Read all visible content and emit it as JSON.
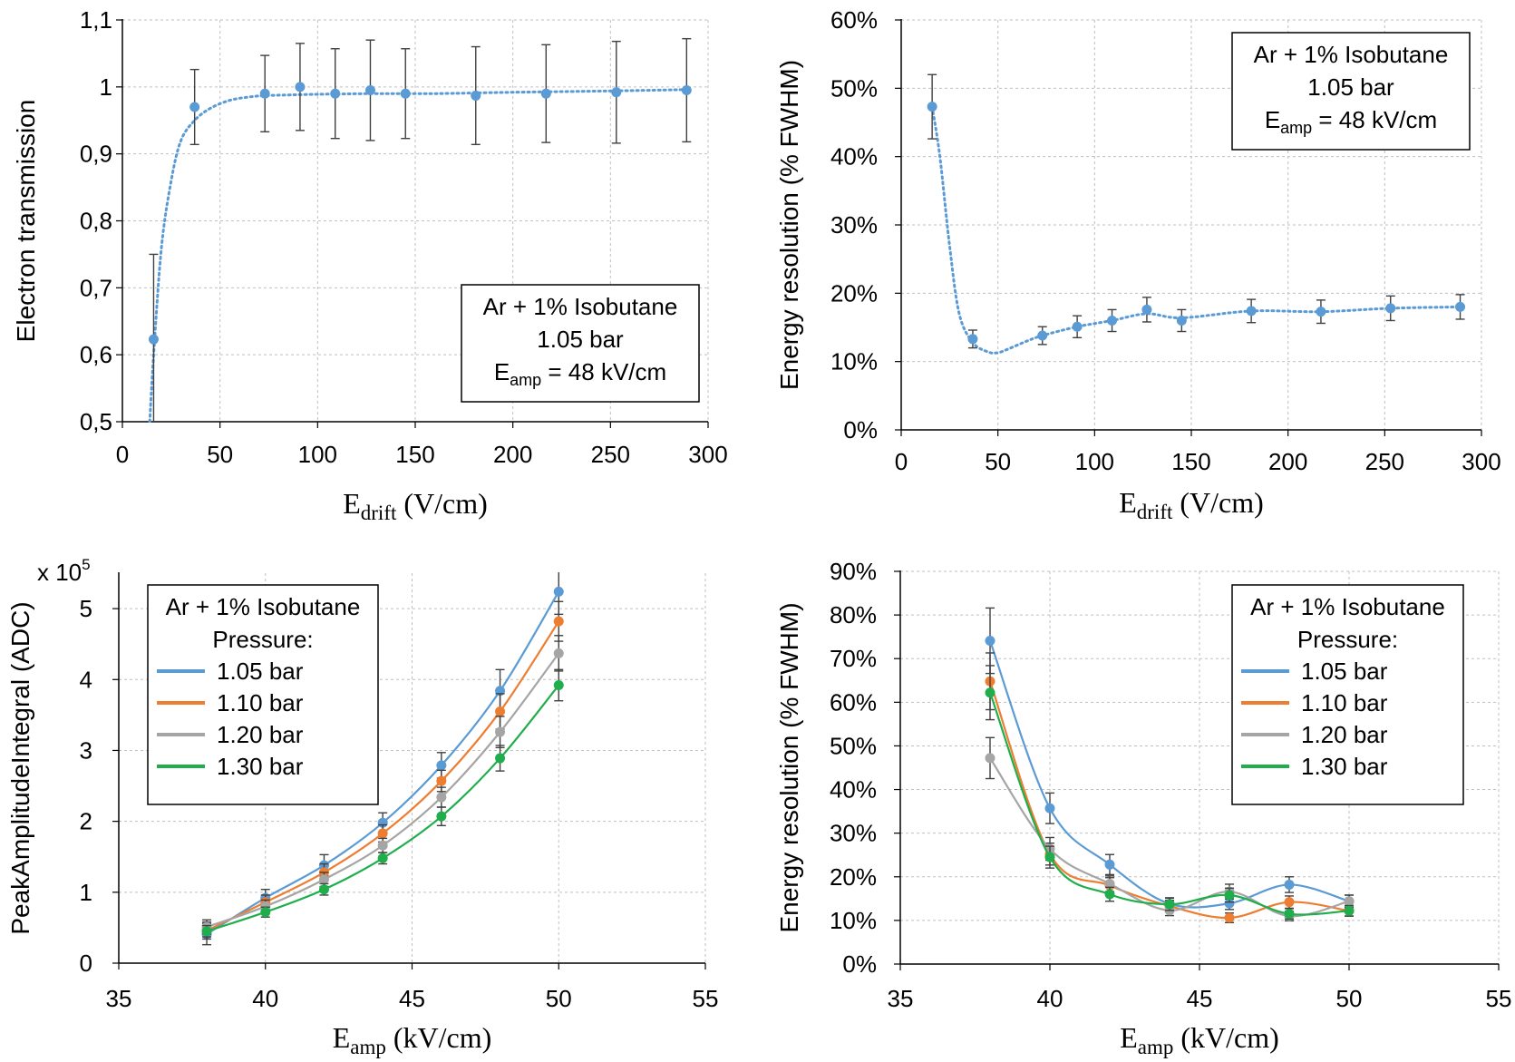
{
  "chart_data": [
    {
      "id": "a",
      "type": "scatter",
      "title": "",
      "xlabel": "E",
      "xlabel_sub": "drift",
      "xlabel_unit": " (V/cm)",
      "ylabel": "Electron transmission",
      "xlim": [
        0,
        300
      ],
      "ylim": [
        0.5,
        1.1
      ],
      "xticks": [
        0,
        50,
        100,
        150,
        200,
        250,
        300
      ],
      "xtick_labels": [
        "0",
        "50",
        "100",
        "150",
        "200",
        "250",
        "300"
      ],
      "yticks": [
        0.5,
        0.6,
        0.7,
        0.8,
        0.9,
        1.0,
        1.1
      ],
      "ytick_labels": [
        "0,5",
        "0,6",
        "0,7",
        "0,8",
        "0,9",
        "1",
        "1,1"
      ],
      "grid": true,
      "legend": {
        "placement": "bottom-right",
        "lines": [
          "Ar + 1% Isobutane",
          "1.05 bar"
        ],
        "eamp_label": "E",
        "eamp_sub": "amp",
        "eamp_rest": " = 48 kV/cm"
      },
      "series": [
        {
          "name": "1.05 bar",
          "color": "#5b9bd5",
          "fit": "dotted",
          "x": [
            16,
            37,
            73,
            91,
            109,
            127,
            145,
            181,
            217,
            253,
            289
          ],
          "y": [
            0.623,
            0.97,
            0.99,
            1.0,
            0.99,
            0.995,
            0.99,
            0.987,
            0.99,
            0.992,
            0.995
          ],
          "err": [
            0.127,
            0.056,
            0.057,
            0.065,
            0.067,
            0.075,
            0.067,
            0.073,
            0.073,
            0.076,
            0.077
          ],
          "curve_x": [
            14,
            16,
            20,
            25,
            30,
            37,
            45,
            55,
            65,
            73,
            85,
            100,
            130,
            160,
            200,
            250,
            289
          ],
          "curve_y": [
            0.5,
            0.6,
            0.76,
            0.86,
            0.92,
            0.95,
            0.968,
            0.98,
            0.985,
            0.987,
            0.988,
            0.989,
            0.99,
            0.99,
            0.992,
            0.994,
            0.996
          ]
        }
      ]
    },
    {
      "id": "b",
      "type": "scatter",
      "title": "",
      "xlabel": "E",
      "xlabel_sub": "drift",
      "xlabel_unit": " (V/cm)",
      "ylabel": "Energy resolution (% FWHM)",
      "xlim": [
        0,
        300
      ],
      "ylim": [
        0,
        60
      ],
      "xticks": [
        0,
        50,
        100,
        150,
        200,
        250,
        300
      ],
      "xtick_labels": [
        "0",
        "50",
        "100",
        "150",
        "200",
        "250",
        "300"
      ],
      "yticks": [
        0,
        10,
        20,
        30,
        40,
        50,
        60
      ],
      "ytick_labels": [
        "0%",
        "10%",
        "20%",
        "30%",
        "40%",
        "50%",
        "60%"
      ],
      "grid": true,
      "legend": {
        "placement": "top-right",
        "lines": [
          "Ar + 1% Isobutane",
          "1.05 bar"
        ],
        "eamp_label": "E",
        "eamp_sub": "amp",
        "eamp_rest": " = 48 kV/cm"
      },
      "series": [
        {
          "name": "1.05 bar",
          "color": "#5b9bd5",
          "fit": "dotted",
          "x": [
            16,
            37,
            73,
            91,
            109,
            127,
            145,
            181,
            217,
            253,
            289
          ],
          "y": [
            47.3,
            13.3,
            13.8,
            15.1,
            16.0,
            17.6,
            16.0,
            17.4,
            17.3,
            17.8,
            18.0
          ],
          "err": [
            4.7,
            1.3,
            1.3,
            1.6,
            1.6,
            1.8,
            1.6,
            1.7,
            1.7,
            1.8,
            1.8
          ],
          "curve_x": [
            16,
            20,
            25,
            30,
            37,
            45,
            50,
            55,
            65,
            73,
            91,
            109,
            127,
            145,
            181,
            217,
            253,
            289
          ],
          "curve_y": [
            47.3,
            40,
            27,
            17,
            12.8,
            11.4,
            11.3,
            11.8,
            13.0,
            13.8,
            15.1,
            16.0,
            17.0,
            16.4,
            17.4,
            17.3,
            17.8,
            18.0
          ]
        }
      ]
    },
    {
      "id": "c",
      "type": "line",
      "title": "",
      "xlabel": "E",
      "xlabel_sub": "amp",
      "xlabel_unit": " (kV/cm)",
      "ylabel": "PeakAmplitudeIntegral (ADC)",
      "y_multiplier_label": "x 10",
      "y_multiplier_exp": "5",
      "xlim": [
        35,
        55
      ],
      "ylim": [
        0,
        5.5
      ],
      "xticks": [
        35,
        40,
        45,
        50,
        55
      ],
      "xtick_labels": [
        "35",
        "40",
        "45",
        "50",
        "55"
      ],
      "yticks": [
        0,
        1,
        2,
        3,
        4,
        5
      ],
      "ytick_labels": [
        "0",
        "1",
        "2",
        "3",
        "4",
        "5"
      ],
      "grid": true,
      "legend": {
        "placement": "top-left",
        "lines": [
          "Ar + 1% Isobutane",
          "Pressure:"
        ]
      },
      "series": [
        {
          "name": "1.05 bar",
          "color": "#5b9bd5",
          "x": [
            38,
            40,
            42,
            44,
            46,
            48,
            50
          ],
          "y": [
            0.41,
            0.92,
            1.38,
            1.98,
            2.79,
            3.84,
            5.24
          ],
          "err": [
            0.15,
            0.12,
            0.15,
            0.14,
            0.18,
            0.3,
            0.32
          ]
        },
        {
          "name": "1.10 bar",
          "color": "#ed7d31",
          "x": [
            38,
            40,
            42,
            44,
            46,
            48,
            50
          ],
          "y": [
            0.46,
            0.86,
            1.28,
            1.83,
            2.57,
            3.55,
            4.82
          ],
          "err": [
            0.12,
            0.1,
            0.12,
            0.12,
            0.15,
            0.25,
            0.28
          ]
        },
        {
          "name": "1.20 bar",
          "color": "#a5a5a5",
          "x": [
            38,
            40,
            42,
            44,
            46,
            48,
            50
          ],
          "y": [
            0.51,
            0.8,
            1.18,
            1.66,
            2.34,
            3.26,
            4.37
          ],
          "err": [
            0.1,
            0.09,
            0.1,
            0.1,
            0.14,
            0.22,
            0.25
          ]
        },
        {
          "name": "1.30 bar",
          "color": "#1fae4b",
          "x": [
            38,
            40,
            42,
            44,
            46,
            48,
            50
          ],
          "y": [
            0.45,
            0.72,
            1.04,
            1.48,
            2.07,
            2.89,
            3.92
          ],
          "err": [
            0.08,
            0.07,
            0.08,
            0.08,
            0.13,
            0.18,
            0.22
          ]
        }
      ]
    },
    {
      "id": "d",
      "type": "line",
      "title": "",
      "xlabel": "E",
      "xlabel_sub": "amp",
      "xlabel_unit": " (kV/cm)",
      "ylabel": "Energy resolution (% FWHM)",
      "xlim": [
        35,
        55
      ],
      "ylim": [
        0,
        90
      ],
      "xticks": [
        35,
        40,
        45,
        50,
        55
      ],
      "xtick_labels": [
        "35",
        "40",
        "45",
        "50",
        "55"
      ],
      "yticks": [
        0,
        10,
        20,
        30,
        40,
        50,
        60,
        70,
        80,
        90
      ],
      "ytick_labels": [
        "0%",
        "10%",
        "20%",
        "30%",
        "40%",
        "50%",
        "60%",
        "70%",
        "80%",
        "90%"
      ],
      "grid": true,
      "legend": {
        "placement": "top-right",
        "lines": [
          "Ar + 1% Isobutane",
          "Pressure:"
        ]
      },
      "series": [
        {
          "name": "1.05 bar",
          "color": "#5b9bd5",
          "x": [
            38,
            40,
            42,
            44,
            46,
            48,
            50
          ],
          "y": [
            74.1,
            35.7,
            22.8,
            13.8,
            13.9,
            18.2,
            14.4
          ],
          "err": [
            7.5,
            3.5,
            2.3,
            1.4,
            1.4,
            1.8,
            1.4
          ]
        },
        {
          "name": "1.10 bar",
          "color": "#ed7d31",
          "x": [
            38,
            40,
            42,
            44,
            46,
            48,
            50
          ],
          "y": [
            64.8,
            25.2,
            18.0,
            13.3,
            10.6,
            14.2,
            12.2
          ],
          "err": [
            6.5,
            2.5,
            1.8,
            1.3,
            1.1,
            1.4,
            1.2
          ]
        },
        {
          "name": "1.20 bar",
          "color": "#a5a5a5",
          "x": [
            38,
            40,
            42,
            44,
            46,
            48,
            50
          ],
          "y": [
            47.2,
            26.4,
            18.4,
            12.3,
            16.6,
            11.0,
            14.4
          ],
          "err": [
            4.7,
            2.6,
            1.8,
            1.2,
            1.7,
            1.1,
            1.4
          ]
        },
        {
          "name": "1.30 bar",
          "color": "#1fae4b",
          "x": [
            38,
            40,
            42,
            44,
            46,
            48,
            50
          ],
          "y": [
            62.2,
            24.5,
            16.0,
            13.7,
            15.8,
            11.5,
            12.2
          ],
          "err": [
            6.2,
            2.5,
            1.6,
            1.4,
            1.6,
            1.2,
            1.2
          ]
        }
      ]
    }
  ],
  "colors": {
    "axis": "#000000",
    "grid": "#bfbfbf",
    "errorbar": "#404040",
    "legend_border": "#000000"
  }
}
